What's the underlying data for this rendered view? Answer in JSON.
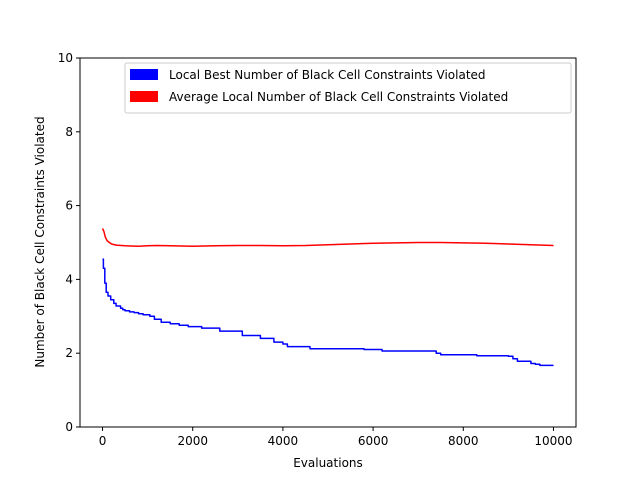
{
  "chart_data": {
    "type": "line",
    "title": "",
    "xlabel": "Evaluations",
    "ylabel": "Number of Black Cell Constraints Violated",
    "xlim": [
      -500,
      10500
    ],
    "ylim": [
      0,
      10
    ],
    "xticks": [
      0,
      2000,
      4000,
      6000,
      8000,
      10000
    ],
    "xtick_labels": [
      "0",
      "2000",
      "4000",
      "6000",
      "8000",
      "10000"
    ],
    "yticks": [
      0,
      2,
      4,
      6,
      8,
      10
    ],
    "ytick_labels": [
      "0",
      "2",
      "4",
      "6",
      "8",
      "10"
    ],
    "grid": false,
    "legend_position": "top-right",
    "series": [
      {
        "name": "Local Best Number of Black Cell Constraints Violated",
        "color": "#0000ff",
        "step": true,
        "x": [
          0,
          20,
          50,
          80,
          120,
          180,
          250,
          300,
          400,
          450,
          500,
          600,
          700,
          800,
          900,
          1050,
          1150,
          1300,
          1500,
          1700,
          1900,
          2200,
          2600,
          3100,
          3500,
          3800,
          4000,
          4100,
          4600,
          5800,
          6200,
          7400,
          7500,
          8300,
          9000,
          9100,
          9200,
          9500,
          9600,
          9700,
          10000
        ],
        "y": [
          4.55,
          4.3,
          3.9,
          3.65,
          3.55,
          3.45,
          3.35,
          3.28,
          3.22,
          3.18,
          3.15,
          3.12,
          3.1,
          3.07,
          3.04,
          3.0,
          2.92,
          2.84,
          2.8,
          2.76,
          2.72,
          2.68,
          2.6,
          2.48,
          2.4,
          2.3,
          2.25,
          2.18,
          2.12,
          2.1,
          2.06,
          2.0,
          1.96,
          1.93,
          1.92,
          1.85,
          1.78,
          1.72,
          1.7,
          1.67,
          1.67
        ]
      },
      {
        "name": "Average Local Number of Black Cell Constraints Violated",
        "color": "#ff0000",
        "step": false,
        "x": [
          0,
          30,
          60,
          100,
          150,
          200,
          300,
          500,
          800,
          1000,
          1200,
          1500,
          2000,
          2500,
          3000,
          3500,
          4000,
          4500,
          5000,
          5500,
          6000,
          6500,
          7000,
          7500,
          8000,
          8500,
          9000,
          9500,
          10000
        ],
        "y": [
          5.38,
          5.3,
          5.15,
          5.05,
          5.0,
          4.96,
          4.93,
          4.91,
          4.9,
          4.91,
          4.92,
          4.91,
          4.9,
          4.91,
          4.92,
          4.92,
          4.91,
          4.92,
          4.94,
          4.96,
          4.98,
          4.99,
          5.0,
          5.0,
          4.99,
          4.98,
          4.96,
          4.94,
          4.92
        ]
      }
    ]
  }
}
